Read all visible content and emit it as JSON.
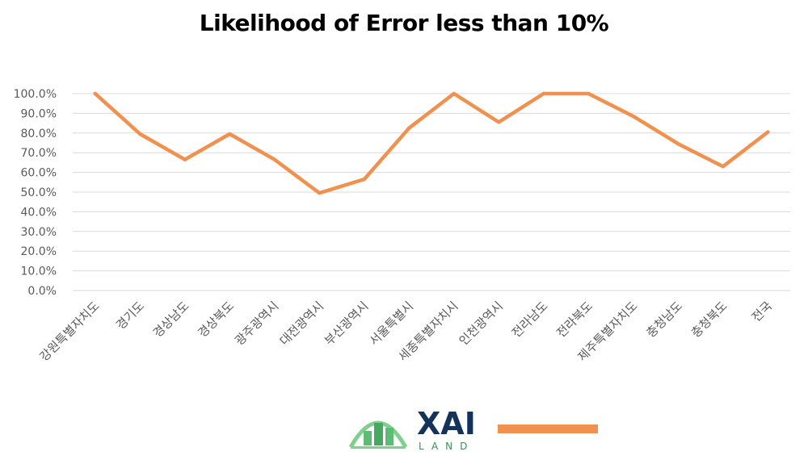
{
  "chart_data": {
    "type": "line",
    "title": "Likelihood of Error less than 10%",
    "xlabel": "",
    "ylabel": "",
    "ylim": [
      0,
      100
    ],
    "yticks": [
      "0.0%",
      "10.0%",
      "20.0%",
      "30.0%",
      "40.0%",
      "50.0%",
      "60.0%",
      "70.0%",
      "80.0%",
      "90.0%",
      "100.0%"
    ],
    "grid": true,
    "categories": [
      "강원특별자치도",
      "경기도",
      "경상남도",
      "경상북도",
      "광주광역시",
      "대전광역시",
      "부산광역시",
      "서울특별시",
      "세종특별자치시",
      "인천광역시",
      "전라남도",
      "전라북도",
      "제주특별자치도",
      "충청남도",
      "충청북도",
      "전국"
    ],
    "series": [
      {
        "values": [
          100,
          79.5,
          66.5,
          79.5,
          66.5,
          49.5,
          56.5,
          82.5,
          100,
          85.5,
          100,
          100,
          88.5,
          74.5,
          63,
          80.5
        ]
      }
    ],
    "line_color": "#f0914f"
  },
  "logo": {
    "brand": "XAI",
    "sub": "LAND",
    "icon": "building-arch-icon"
  }
}
